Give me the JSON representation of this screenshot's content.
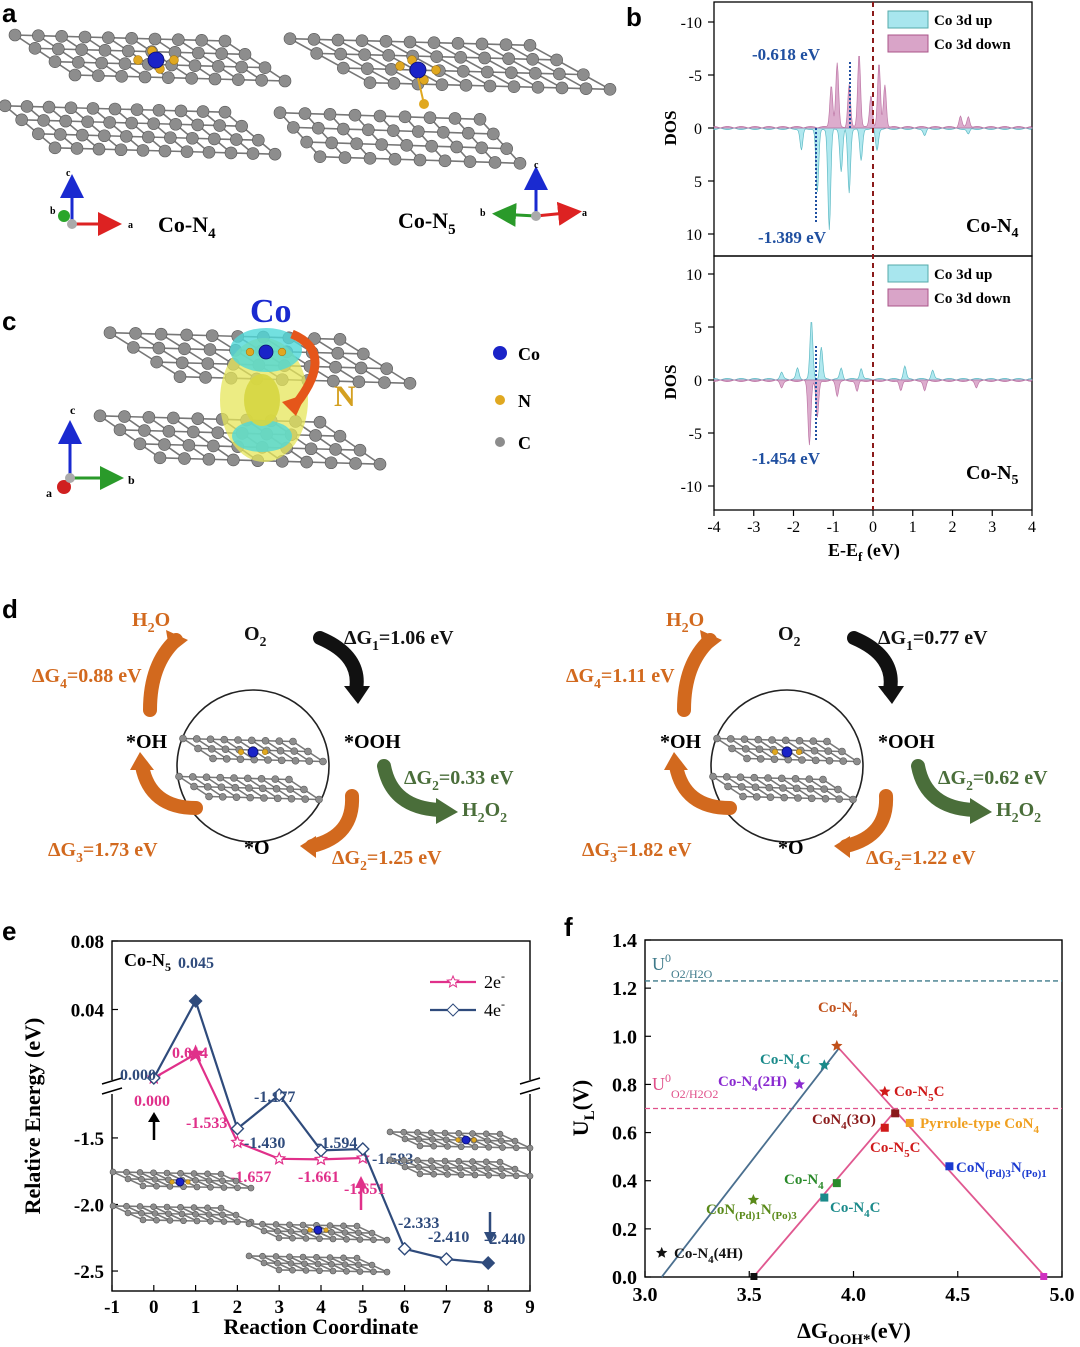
{
  "panels": {
    "a": "a",
    "b": "b",
    "c": "c",
    "d": "d",
    "e": "e",
    "f": "f"
  },
  "panel_a": {
    "left_label": "Co-N",
    "left_sub": "4",
    "right_label": "Co-N",
    "right_sub": "5",
    "axes_left": {
      "b": "b",
      "c": "c",
      "a": "a"
    },
    "axes_right": {
      "b": "b",
      "c": "c",
      "a": "a"
    }
  },
  "panel_c": {
    "co_label": "Co",
    "n_label": "N",
    "legend": [
      {
        "label": "Co",
        "color": "#1a23c8"
      },
      {
        "label": "N",
        "color": "#e0a820"
      },
      {
        "label": "C",
        "color": "#8c8c8c"
      }
    ],
    "axes": {
      "c": "c",
      "a": "a",
      "b": "b"
    }
  },
  "panel_b": {
    "xlabel": "E-E",
    "xlabel_sub": "f",
    "xlabel_unit": " (eV)",
    "ylabel": "DOS",
    "legend_up": "Co 3d up",
    "legend_down": "Co 3d down",
    "top_tag": "Co-N",
    "top_tag_sub": "4",
    "bottom_tag": "Co-N",
    "bottom_tag_sub": "5",
    "ann_top1": "-0.618 eV",
    "ann_top2": "-1.389 eV",
    "ann_bottom": "-1.454 eV",
    "colors": {
      "up": "#a8e6ee",
      "down": "#d9a4c8",
      "fermi": "#8b1a1a",
      "ann": "#1f4fa0"
    }
  },
  "panel_d": {
    "left": {
      "o2": "O",
      "o2_sub": "2",
      "h2o": "H",
      "h2o_sub": "2",
      "h2o_end": "O",
      "dG1": "ΔG",
      "dG1_sub": "1",
      "dG1_val": "=1.06 eV",
      "dG2a": "ΔG",
      "dG2a_sub": "2",
      "dG2a_val": "=0.33 eV",
      "dG2b": "ΔG",
      "dG2b_sub": "2",
      "dG2b_val": "=1.25 eV",
      "dG3": "ΔG",
      "dG3_sub": "3",
      "dG3_val": "=1.73 eV",
      "dG4": "ΔG",
      "dG4_sub": "4",
      "dG4_val": "=0.88 eV",
      "h2o2": "H",
      "h2o2_sub1": "2",
      "h2o2_mid": "O",
      "h2o2_sub2": "2",
      "oh": "*OH",
      "ooh": "*OOH",
      "o": "*O"
    },
    "right": {
      "o2": "O",
      "o2_sub": "2",
      "h2o": "H",
      "h2o_sub": "2",
      "h2o_end": "O",
      "dG1": "ΔG",
      "dG1_sub": "1",
      "dG1_val": "=0.77 eV",
      "dG2a": "ΔG",
      "dG2a_sub": "2",
      "dG2a_val": "=0.62 eV",
      "dG2b": "ΔG",
      "dG2b_sub": "2",
      "dG2b_val": "=1.22 eV",
      "dG3": "ΔG",
      "dG3_sub": "3",
      "dG3_val": "=1.82 eV",
      "dG4": "ΔG",
      "dG4_sub": "4",
      "dG4_val": "=1.11 eV",
      "h2o2": "H",
      "h2o2_sub1": "2",
      "h2o2_mid": "O",
      "h2o2_sub2": "2",
      "oh": "*OH",
      "ooh": "*OOH",
      "o": "*O"
    },
    "colors": {
      "orange": "#d2691e",
      "green": "#4a6e3a",
      "black": "#111111"
    }
  },
  "chart_data": [
    {
      "type": "line",
      "panel": "e",
      "title": "Co-N5",
      "title_main": "Co-N",
      "title_sub": "5",
      "xlabel": "Reaction Coordinate",
      "ylabel": "Relative Energy (eV)",
      "x_ticks": [
        "-1",
        "0",
        "1",
        "2",
        "3",
        "4",
        "5",
        "6",
        "7",
        "8",
        "9"
      ],
      "y_ticks_top": [
        "0.08",
        "0.04"
      ],
      "y_ticks_bottom": [
        "-1.5",
        "-2.0",
        "-2.5"
      ],
      "ylim_upper": [
        0.0,
        0.08
      ],
      "ylim_lower": [
        -2.65,
        -1.2
      ],
      "series": [
        {
          "name": "2e-",
          "legend_main": "2e",
          "legend_sup": "-",
          "color": "#e0308a",
          "x": [
            0,
            1,
            2,
            3,
            4,
            5
          ],
          "y": [
            0.0,
            0.014,
            -1.533,
            -1.657,
            -1.661,
            -1.651
          ]
        },
        {
          "name": "4e-",
          "legend_main": "4e",
          "legend_sup": "-",
          "color": "#2f4b7c",
          "x": [
            0,
            1,
            2,
            3,
            4,
            5,
            6,
            7,
            8
          ],
          "y": [
            0.0,
            0.045,
            -1.43,
            -1.177,
            -1.594,
            -1.583,
            -2.333,
            -2.41,
            -2.44
          ]
        }
      ],
      "labels_4e": [
        "0.000",
        "0.045",
        "-1.430",
        "-1.177",
        "-1.594",
        "-1.583",
        "-2.333",
        "-2.410",
        "-2.440"
      ],
      "labels_2e": [
        "0.000",
        "0.014",
        "-1.533",
        "-1.657",
        "-1.661",
        "-1.651"
      ]
    },
    {
      "type": "scatter",
      "panel": "f",
      "xlabel_main": "ΔG",
      "xlabel_sub": "OOH*",
      "xlabel_unit": "(eV)",
      "ylabel_main": "U",
      "ylabel_sub": "L",
      "ylabel_unit": "(V)",
      "xlim": [
        3.0,
        5.0
      ],
      "ylim": [
        0.0,
        1.4
      ],
      "x_ticks": [
        "3.0",
        "3.5",
        "4.0",
        "4.5",
        "5.0"
      ],
      "y_ticks": [
        "0.0",
        "0.2",
        "0.4",
        "0.6",
        "0.8",
        "1.0",
        "1.2",
        "1.4"
      ],
      "ref_lines": [
        {
          "label_main": "U",
          "label_sup": "0",
          "label_sub": "O2/H2O",
          "y": 1.23,
          "color": "#3f7a8a"
        },
        {
          "label_main": "U",
          "label_sup": "0",
          "label_sub": "O2/H2O2",
          "y": 0.7,
          "color": "#e0508a"
        }
      ],
      "points": [
        {
          "label": "Co-N4",
          "x": 3.92,
          "y": 0.96,
          "color": "#c0501a",
          "marker": "star"
        },
        {
          "label": "Co-N4C",
          "x": 3.86,
          "y": 0.88,
          "color": "#1a8a8a",
          "marker": "star"
        },
        {
          "label": "Co-N4(2H)",
          "x": 3.74,
          "y": 0.8,
          "color": "#8a2ad0",
          "marker": "star"
        },
        {
          "label": "Co-N5C",
          "x": 4.15,
          "y": 0.77,
          "color": "#d01a1a",
          "marker": "star"
        },
        {
          "label": "CoN4(3O)",
          "x": 4.2,
          "y": 0.68,
          "color": "#8a1a1a",
          "marker": "square"
        },
        {
          "label": "Co-N5C",
          "x": 4.15,
          "y": 0.62,
          "color": "#d01a1a",
          "marker": "square"
        },
        {
          "label": "Pyrrole-type CoN4",
          "x": 4.27,
          "y": 0.64,
          "color": "#f0a020",
          "marker": "square"
        },
        {
          "label": "CoN(Pd)3N(Po)1",
          "x": 4.46,
          "y": 0.46,
          "color": "#1a3ad0",
          "marker": "square"
        },
        {
          "label": "Co-N4",
          "x": 3.92,
          "y": 0.39,
          "color": "#2a8a2a",
          "marker": "square"
        },
        {
          "label": "Co-N4C",
          "x": 3.86,
          "y": 0.33,
          "color": "#1a8a8a",
          "marker": "square"
        },
        {
          "label": "CoN(Pd)1N(Po)3",
          "x": 3.52,
          "y": 0.32,
          "color": "#5a8a1a",
          "marker": "star"
        },
        {
          "label": "Co-N4(4H)",
          "x": 3.08,
          "y": 0.1,
          "color": "#111111",
          "marker": "star"
        }
      ],
      "point_labels": {
        "p1": "Co-N",
        "p1s": "4",
        "p2": "Co-N",
        "p2s": "4",
        "p2e": "C",
        "p3": "Co-N",
        "p3s": "4",
        "p3e": "(2H)",
        "p4": "Co-N",
        "p4s": "5",
        "p4e": "C",
        "p5": "CoN",
        "p5s": "4",
        "p5e": "(3O)",
        "p6": "Co-N",
        "p6s": "5",
        "p6e": "C",
        "p7": "Pyrrole-type CoN",
        "p7s": "4",
        "p8": "CoN",
        "p8s": "(Pd)3",
        "p8m": "N",
        "p8s2": "(Po)1",
        "p9": "Co-N",
        "p9s": "4",
        "p10": "Co-N",
        "p10s": "4",
        "p10e": "C",
        "p11": "CoN",
        "p11s": "(Pd)1",
        "p11m": "N",
        "p11s2": "(Po)3",
        "p12": "Co-N",
        "p12s": "4",
        "p12e": "(4H)"
      },
      "volcano_lines": {
        "left_color": "#4a6f8f",
        "right_color": "#e05890"
      }
    }
  ]
}
